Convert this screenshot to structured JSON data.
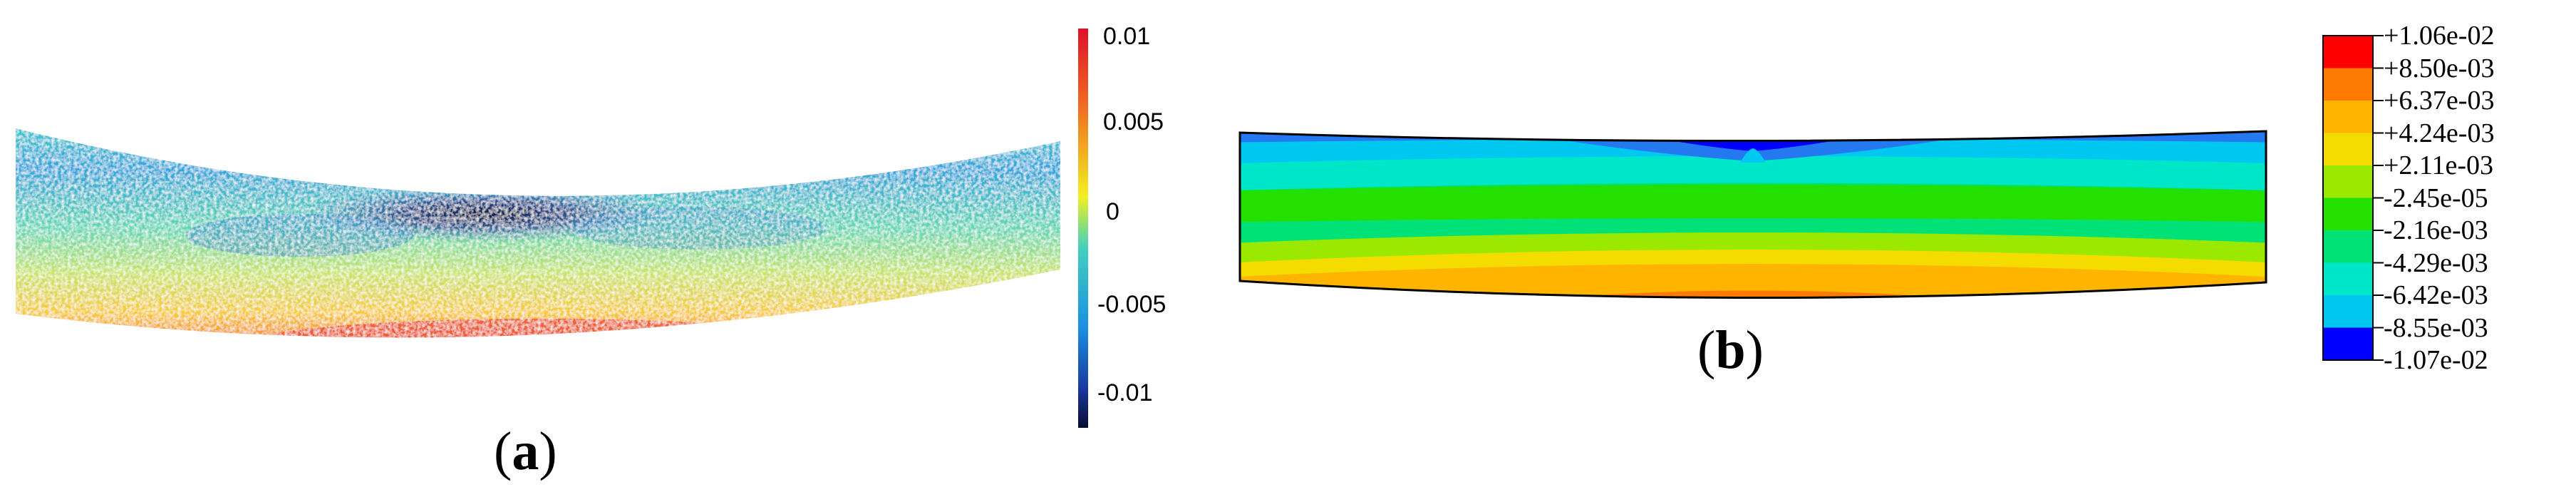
{
  "panel_a": {
    "label": "a",
    "colorbar_ticks": [
      "0.01",
      "0.005",
      "0",
      "-0.005",
      "-0.01"
    ]
  },
  "panel_b": {
    "label": "b",
    "legend_levels": [
      "+1.06e-02",
      "+8.50e-03",
      "+6.37e-03",
      "+4.24e-03",
      "+2.11e-03",
      "-2.45e-05",
      "-2.16e-03",
      "-4.29e-03",
      "-6.42e-03",
      "-8.55e-03",
      "-1.07e-02"
    ],
    "legend_colors": [
      "#ff0000",
      "#ff7a00",
      "#ffb400",
      "#f5dc00",
      "#9be800",
      "#24e000",
      "#00e278",
      "#00e6c8",
      "#00c8f0",
      "#2478f0",
      "#0000ff"
    ]
  },
  "colors": {
    "high": "#d7191c",
    "mid": "#3ccfbf",
    "low": "#101450"
  }
}
